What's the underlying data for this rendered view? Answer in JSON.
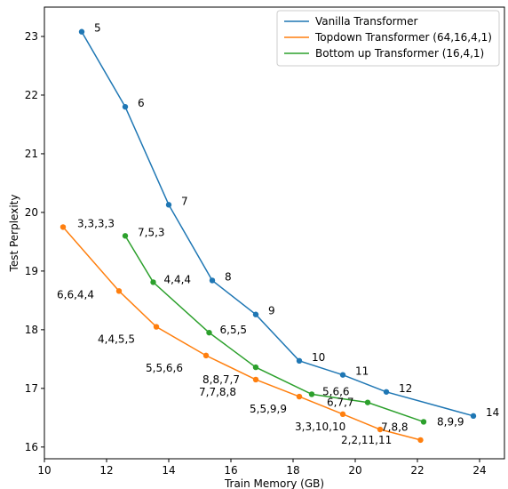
{
  "chart_data": {
    "type": "line",
    "xlabel": "Train Memory (GB)",
    "ylabel": "Test Perplexity",
    "xlim": [
      10,
      24.8
    ],
    "ylim": [
      15.8,
      23.5
    ],
    "xticks": [
      10,
      12,
      14,
      16,
      18,
      20,
      22,
      24
    ],
    "yticks": [
      16,
      17,
      18,
      19,
      20,
      21,
      22,
      23
    ],
    "grid": false,
    "legend_position": "top-right",
    "series": [
      {
        "name": "Vanilla Transformer",
        "color": "#1f77b4",
        "points": [
          {
            "x": 11.2,
            "y": 23.08,
            "label": "5"
          },
          {
            "x": 12.6,
            "y": 21.8,
            "label": "6"
          },
          {
            "x": 14.0,
            "y": 20.13,
            "label": "7"
          },
          {
            "x": 15.4,
            "y": 18.84,
            "label": "8"
          },
          {
            "x": 16.8,
            "y": 18.26,
            "label": "9"
          },
          {
            "x": 18.2,
            "y": 17.47,
            "label": "10"
          },
          {
            "x": 19.6,
            "y": 17.23,
            "label": "11"
          },
          {
            "x": 21.0,
            "y": 16.94,
            "label": "12"
          },
          {
            "x": 23.8,
            "y": 16.53,
            "label": "14"
          }
        ]
      },
      {
        "name": "Topdown Transformer (64,16,4,1)",
        "color": "#ff7f0e",
        "points": [
          {
            "x": 10.6,
            "y": 19.75,
            "label": "3,3,3,3"
          },
          {
            "x": 12.4,
            "y": 18.66,
            "label": "6,6,4,4"
          },
          {
            "x": 13.6,
            "y": 18.05,
            "label": "4,4,5,5"
          },
          {
            "x": 15.2,
            "y": 17.56,
            "label": "5,5,6,6"
          },
          {
            "x": 16.8,
            "y": 17.15,
            "label": "7,7,8,8"
          },
          {
            "x": 18.2,
            "y": 16.86,
            "label": "5,5,9,9"
          },
          {
            "x": 19.6,
            "y": 16.56,
            "label": "3,3,10,10"
          },
          {
            "x": 20.8,
            "y": 16.3,
            "label": "2,2,11,11"
          },
          {
            "x": 22.1,
            "y": 16.12,
            "label": ""
          }
        ]
      },
      {
        "name": "Bottom up Transformer (16,4,1)",
        "color": "#2ca02c",
        "points": [
          {
            "x": 12.6,
            "y": 19.6,
            "label": "7,5,3"
          },
          {
            "x": 13.5,
            "y": 18.81,
            "label": "4,4,4"
          },
          {
            "x": 15.3,
            "y": 17.95,
            "label": "6,5,5"
          },
          {
            "x": 16.8,
            "y": 17.36,
            "label": "8,8,7,7"
          },
          {
            "x": 18.6,
            "y": 16.9,
            "label": "5,6,6"
          },
          {
            "x": 20.4,
            "y": 16.76,
            "label": "6,7,7"
          },
          {
            "x": 22.2,
            "y": 16.43,
            "label": "7,8,8"
          }
        ]
      }
    ]
  },
  "extra_annotations": [
    "8,9,9"
  ]
}
